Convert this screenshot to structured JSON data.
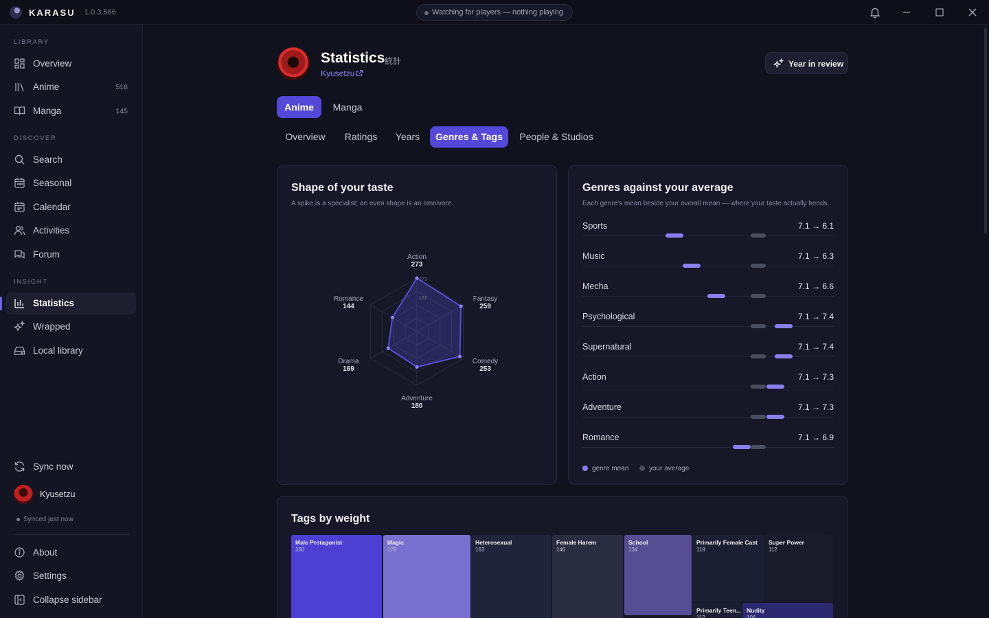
{
  "app": {
    "name": "KARASU",
    "version": "1.0.3.566",
    "status": "Watching for players — nothing playing"
  },
  "sidebar": {
    "library_label": "LIBRARY",
    "discover_label": "DISCOVER",
    "insight_label": "INSIGHT",
    "items": {
      "overview": "Overview",
      "anime": "Anime",
      "anime_count": "518",
      "manga": "Manga",
      "manga_count": "145",
      "search": "Search",
      "seasonal": "Seasonal",
      "calendar": "Calendar",
      "activities": "Activities",
      "forum": "Forum",
      "statistics": "Statistics",
      "wrapped": "Wrapped",
      "local_library": "Local library"
    },
    "sync": "Sync now",
    "user": "Kyusetzu",
    "synced_status": "Synced just now",
    "about": "About",
    "settings": "Settings",
    "collapse": "Collapse sidebar"
  },
  "header": {
    "title": "Statistics",
    "title_jp": "統計",
    "username": "Kyusetzu",
    "year_in_review": "Year in review"
  },
  "media_tabs": [
    "Anime",
    "Manga"
  ],
  "sub_tabs": [
    "Overview",
    "Ratings",
    "Years",
    "Genres & Tags",
    "People & Studios"
  ],
  "taste": {
    "title": "Shape of your taste",
    "subtitle": "A spike is a specialist; an even shape is an omnivore.",
    "scale_max": "273",
    "scale_mid": "137",
    "axes": [
      {
        "name": "Action",
        "value": 273
      },
      {
        "name": "Fantasy",
        "value": 259
      },
      {
        "name": "Comedy",
        "value": 253
      },
      {
        "name": "Adventure",
        "value": 180
      },
      {
        "name": "Drama",
        "value": 169
      },
      {
        "name": "Romance",
        "value": 144
      }
    ]
  },
  "genres": {
    "title": "Genres against your average",
    "subtitle": "Each genre's mean beside your overall mean — where your taste actually bends.",
    "rows": [
      {
        "name": "Sports",
        "value_text": "7.1 → 6.1",
        "avg": 7.1,
        "mean": 6.1
      },
      {
        "name": "Music",
        "value_text": "7.1 → 6.3",
        "avg": 7.1,
        "mean": 6.3
      },
      {
        "name": "Mecha",
        "value_text": "7.1 → 6.6",
        "avg": 7.1,
        "mean": 6.6
      },
      {
        "name": "Psychological",
        "value_text": "7.1 → 7.4",
        "avg": 7.1,
        "mean": 7.4
      },
      {
        "name": "Supernatural",
        "value_text": "7.1 → 7.4",
        "avg": 7.1,
        "mean": 7.4
      },
      {
        "name": "Action",
        "value_text": "7.1 → 7.3",
        "avg": 7.1,
        "mean": 7.3
      },
      {
        "name": "Adventure",
        "value_text": "7.1 → 7.3",
        "avg": 7.1,
        "mean": 7.3
      },
      {
        "name": "Romance",
        "value_text": "7.1 → 6.9",
        "avg": 7.1,
        "mean": 6.9
      }
    ],
    "legend_mean": "genre mean",
    "legend_avg": "your average"
  },
  "tags": {
    "title": "Tags by weight",
    "items": [
      {
        "name": "Male Protagonist",
        "count": "360"
      },
      {
        "name": "Magic",
        "count": "179"
      },
      {
        "name": "Heterosexual",
        "count": "163"
      },
      {
        "name": "Female Harem",
        "count": "146"
      },
      {
        "name": "School",
        "count": "134"
      },
      {
        "name": "Primarily Female Cast",
        "count": "118"
      },
      {
        "name": "Super Power",
        "count": "112"
      },
      {
        "name": "Primarily Teen...",
        "count": "112"
      },
      {
        "name": "Nudity",
        "count": "106"
      }
    ]
  },
  "colors": {
    "accent": "#5547d8",
    "mean": "#8b7ff0",
    "average": "#4a4d5e"
  }
}
